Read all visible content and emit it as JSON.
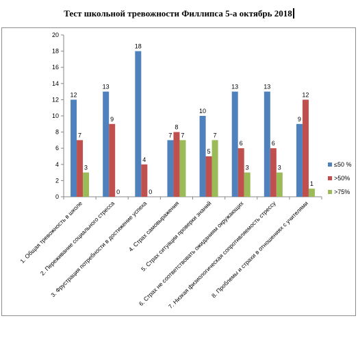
{
  "title": "Тест школьной тревожности Филлипса 5-а октябрь 2018",
  "chart_data": {
    "type": "bar",
    "title": "Тест школьной тревожности Филлипса 5-а октябрь 2018",
    "categories": [
      "1. Общая тревожность в школе",
      "2. Переживание социального стресса",
      "3. Фрустрация потребности в достижение успеха",
      "4. Страх самовыражения",
      "5. Страх ситуации проверки знаний",
      "6. Страх не соответствовать ожиданиям окружающих",
      "7. Низкая физиологическая сопротивляемость стрессу",
      "8. Проблемы и страхи в отношениях с учителями"
    ],
    "series": [
      {
        "name": "≤50 %",
        "color": "#4f81bd",
        "values": [
          12,
          13,
          18,
          7,
          10,
          13,
          13,
          9
        ]
      },
      {
        "name": ">50%",
        "color": "#c0504d",
        "values": [
          7,
          9,
          4,
          8,
          5,
          6,
          6,
          12
        ]
      },
      {
        "name": ">75%",
        "color": "#9bbb59",
        "values": [
          3,
          0,
          0,
          7,
          7,
          3,
          3,
          1
        ]
      }
    ],
    "ylim": [
      0,
      20
    ],
    "yticks": [
      0,
      2,
      4,
      6,
      8,
      10,
      12,
      14,
      16,
      18,
      20
    ],
    "grid": false,
    "legend_position": "right"
  }
}
